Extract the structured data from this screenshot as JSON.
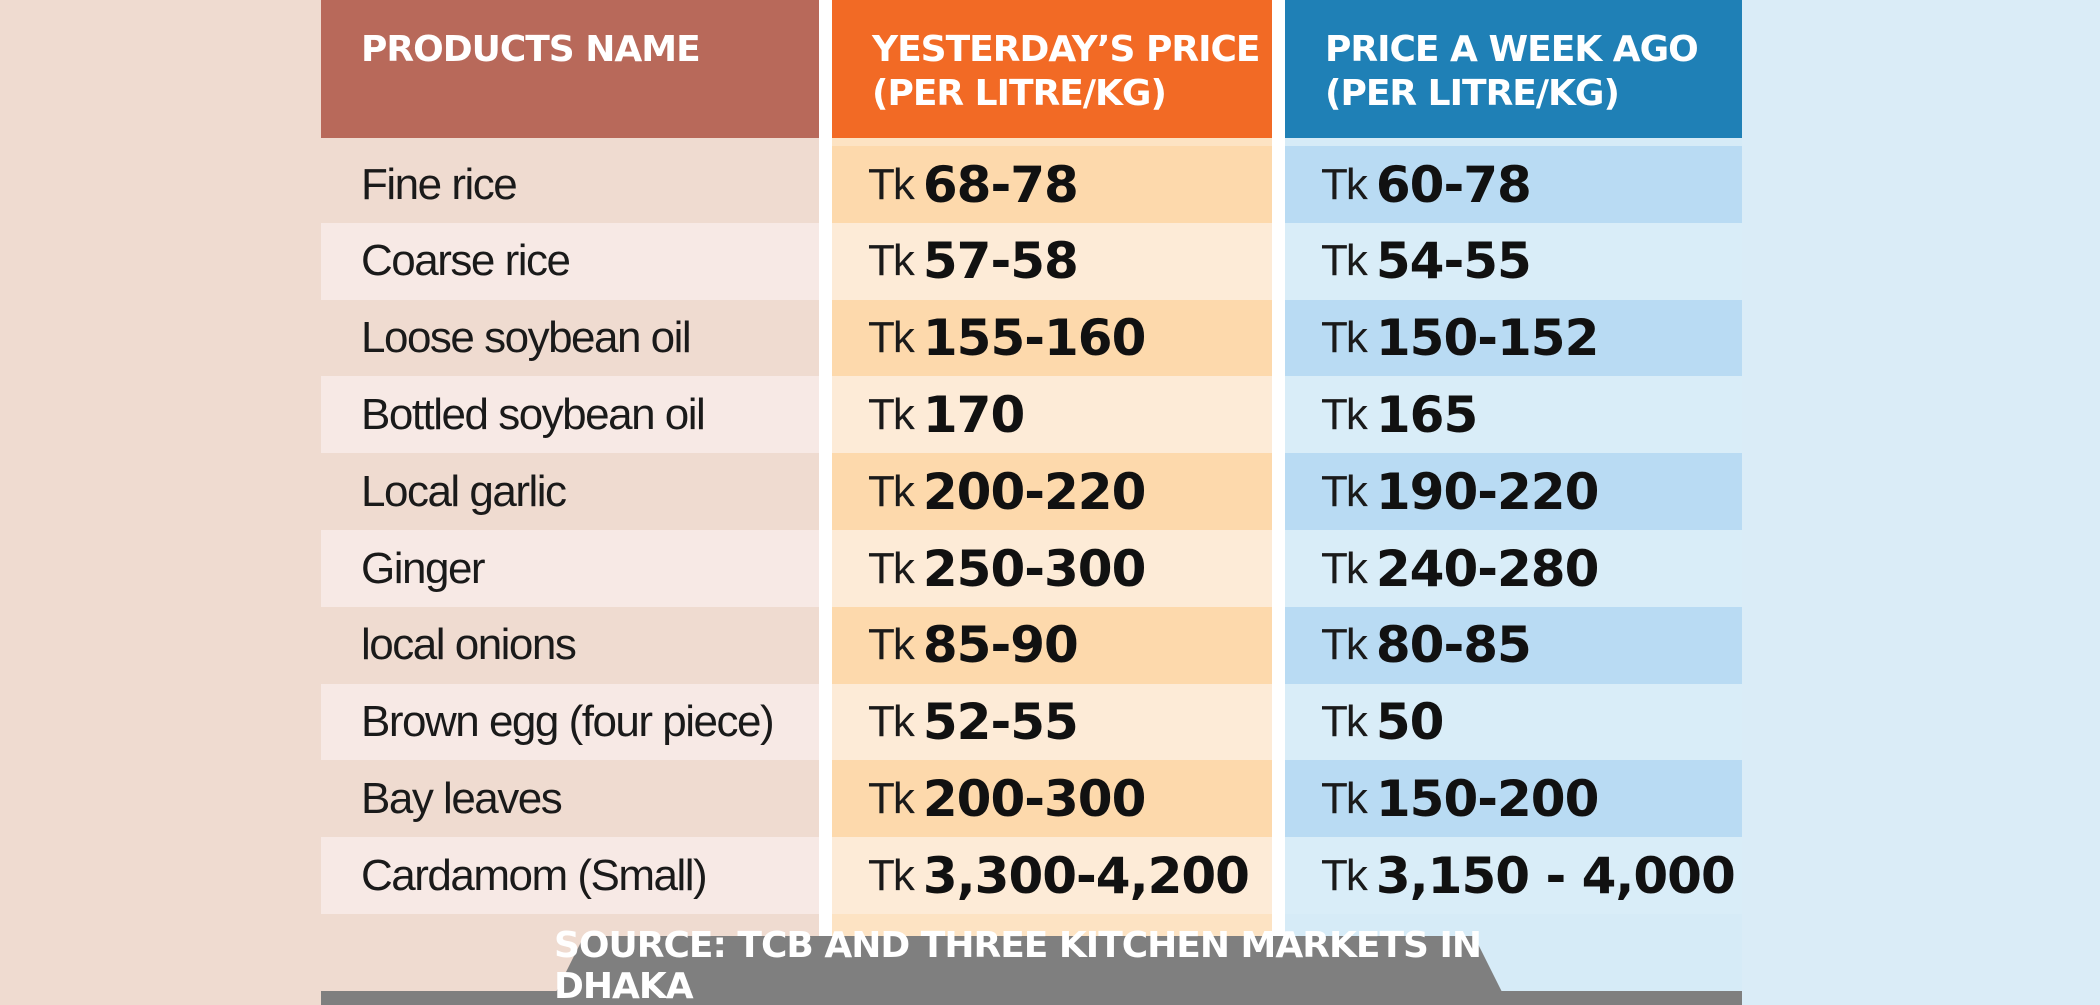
{
  "headers": {
    "name": "PRODUCTS NAME",
    "yesterday": "YESTERDAY’S PRICE\n(PER LITRE/KG)",
    "week_ago": "PRICE A WEEK AGO\n(PER LITRE/KG)"
  },
  "currency": "Tk",
  "rows": [
    {
      "name": "Fine rice",
      "yesterday": "68-78",
      "week_ago": "60-78"
    },
    {
      "name": "Coarse rice",
      "yesterday": "57-58",
      "week_ago": "54-55"
    },
    {
      "name": "Loose soybean oil",
      "yesterday": "155-160",
      "week_ago": "150-152"
    },
    {
      "name": "Bottled soybean oil",
      "yesterday": "170",
      "week_ago": "165"
    },
    {
      "name": "Local garlic",
      "yesterday": "200-220",
      "week_ago": "190-220"
    },
    {
      "name": "Ginger",
      "yesterday": "250-300",
      "week_ago": "240-280"
    },
    {
      "name": "local onions",
      "yesterday": "85-90",
      "week_ago": "80-85"
    },
    {
      "name": "Brown egg (four piece)",
      "yesterday": "52-55",
      "week_ago": "50"
    },
    {
      "name": "Bay leaves",
      "yesterday": "200-300",
      "week_ago": "150-200"
    },
    {
      "name": "Cardamom (Small)",
      "yesterday": "3,300-4,200",
      "week_ago": "3,150 - 4,000"
    }
  ],
  "source": "SOURCE: TCB AND THREE KITCHEN MARKETS IN DHAKA",
  "colors": {
    "header_name": "#b8695a",
    "header_yesterday": "#f26a25",
    "header_week_ago": "#1f80b6",
    "footer": "#7f7f7f"
  }
}
